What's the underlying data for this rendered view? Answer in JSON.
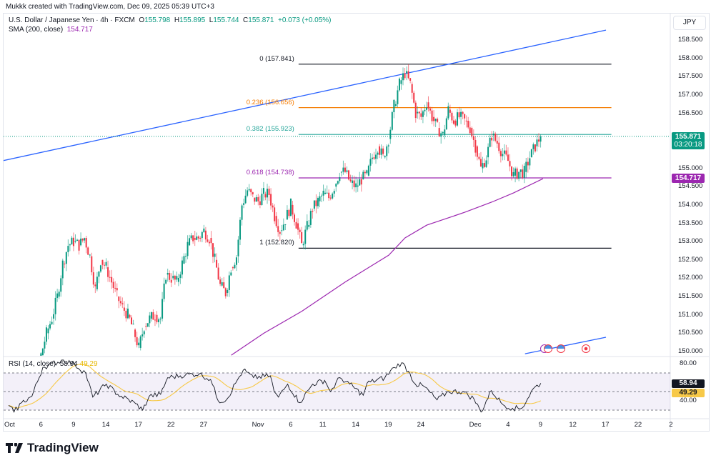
{
  "header": {
    "credit": "Mukkk created with TradingView.com, Dec 09, 2025 05:39 UTC+3"
  },
  "legend": {
    "symbol": "U.S. Dollar / Japanese Yen · 4h · FXCM",
    "o_label": "O",
    "o": "155.798",
    "h_label": "H",
    "h": "155.895",
    "l_label": "L",
    "l": "155.744",
    "c_label": "C",
    "c": "155.871",
    "change": "+0.073 (+0.05%)",
    "sma_label": "SMA (200, close)",
    "sma_value": "154.717"
  },
  "rsi_legend": {
    "label": "RSI (14, close)",
    "value": "58.94",
    "ma_value": "49.29"
  },
  "currency": "JPY",
  "price_tags": {
    "last": "155.871",
    "countdown": "03:20:18",
    "sma": "154.717",
    "rsi": "58.94",
    "rsi_ma": "49.29"
  },
  "colors": {
    "up": "#089981",
    "down": "#f23645",
    "sma": "#9c27b0",
    "trend": "#2962ff",
    "rsi": "#131722",
    "rsi_ma": "#f7c948"
  },
  "logo": "TradingView",
  "chart_data": {
    "type": "candlestick",
    "title": "U.S. Dollar / Japanese Yen · 4h · FXCM",
    "bar_unit": "12h steps of trading time from Oct 1",
    "closes": [
      147.3,
      147.6,
      147.5,
      147.8,
      147.9,
      148.3,
      149.9,
      150.5,
      150.9,
      151.5,
      152.4,
      152.9,
      153.0,
      152.9,
      153.1,
      152.6,
      151.7,
      152.5,
      152.3,
      151.9,
      151.5,
      151.2,
      151.0,
      150.6,
      150.1,
      150.7,
      150.9,
      151.0,
      150.9,
      152.1,
      152.0,
      151.9,
      152.4,
      152.9,
      153.1,
      153.1,
      153.3,
      153.1,
      152.5,
      151.8,
      151.6,
      152.3,
      152.6,
      154.0,
      154.4,
      154.2,
      154.1,
      154.3,
      154.3,
      153.7,
      153.3,
      153.6,
      154.0,
      153.5,
      152.9,
      153.4,
      153.9,
      154.1,
      154.3,
      154.2,
      154.5,
      154.9,
      154.9,
      154.6,
      154.5,
      154.7,
      154.8,
      155.3,
      155.6,
      155.3,
      155.8,
      156.7,
      157.3,
      157.6,
      157.3,
      156.5,
      156.4,
      156.8,
      156.4,
      156.1,
      155.9,
      156.6,
      156.3,
      156.4,
      156.3,
      156.1,
      155.6,
      155.0,
      155.3,
      155.9,
      155.7,
      155.4,
      155.2,
      154.8,
      154.9,
      154.9,
      155.3,
      155.6,
      155.871
    ],
    "sma200": [
      [
        41,
        149.9
      ],
      [
        47,
        150.5
      ],
      [
        54,
        151.1
      ],
      [
        62,
        151.9
      ],
      [
        70,
        152.63
      ],
      [
        73,
        153.1
      ],
      [
        77,
        153.45
      ],
      [
        84,
        153.8
      ],
      [
        89,
        154.08
      ],
      [
        93,
        154.33
      ],
      [
        98.4,
        154.717
      ]
    ],
    "y_range": [
      149.8,
      159.0
    ],
    "y_ticks": [
      "158.500",
      "158.000",
      "157.500",
      "157.000",
      "156.500",
      "156.000",
      "155.500",
      "155.000",
      "154.500",
      "154.000",
      "153.500",
      "153.000",
      "152.500",
      "152.000",
      "151.500",
      "151.000",
      "150.500",
      "150.000"
    ],
    "x_ticks": [
      {
        "label": "Oct",
        "i": 0
      },
      {
        "label": "6",
        "i": 6
      },
      {
        "label": "9",
        "i": 12
      },
      {
        "label": "14",
        "i": 18
      },
      {
        "label": "17",
        "i": 24
      },
      {
        "label": "22",
        "i": 30
      },
      {
        "label": "27",
        "i": 36
      },
      {
        "label": "Nov",
        "i": 46
      },
      {
        "label": "6",
        "i": 52
      },
      {
        "label": "11",
        "i": 58
      },
      {
        "label": "14",
        "i": 64
      },
      {
        "label": "19",
        "i": 70
      },
      {
        "label": "24",
        "i": 76
      },
      {
        "label": "Dec",
        "i": 86
      },
      {
        "label": "4",
        "i": 92
      },
      {
        "label": "9",
        "i": 98
      },
      {
        "label": "12",
        "i": 104
      },
      {
        "label": "17",
        "i": 110
      },
      {
        "label": "22",
        "i": 116
      },
      {
        "label": "2",
        "i": 122
      }
    ],
    "fib": {
      "start_i": 53.4,
      "end_i": 111,
      "levels": [
        {
          "label": "0 (157.841)",
          "price": 157.841,
          "color": "#131722"
        },
        {
          "label": "0.236 (156.656)",
          "price": 156.656,
          "color": "#f57c00"
        },
        {
          "label": "0.382 (155.923)",
          "price": 155.923,
          "color": "#26a69a"
        },
        {
          "label": "0.618 (154.738)",
          "price": 154.738,
          "color": "#9c27b0"
        },
        {
          "label": "1 (152.820)",
          "price": 152.82,
          "color": "#131722"
        }
      ]
    },
    "trendlines": [
      {
        "from": [
          -1.6,
          155.19
        ],
        "to": [
          110,
          158.77
        ]
      },
      {
        "from": [
          95.1,
          149.94
        ],
        "to": [
          110,
          150.39
        ]
      }
    ],
    "rsi": {
      "levels": [
        70,
        50,
        30
      ],
      "y_ticks": [
        "80.00",
        "40.00"
      ],
      "points": [
        [
          0,
          35
        ],
        [
          1,
          28
        ],
        [
          2.4,
          38
        ],
        [
          4.3,
          45
        ],
        [
          6.3,
          76
        ],
        [
          10.1,
          84
        ],
        [
          12.2,
          79
        ],
        [
          14.2,
          70
        ],
        [
          15.5,
          44
        ],
        [
          18,
          58
        ],
        [
          20.1,
          47
        ],
        [
          23.4,
          37
        ],
        [
          24.7,
          30
        ],
        [
          25.9,
          45
        ],
        [
          28,
          47
        ],
        [
          29.3,
          65
        ],
        [
          32.6,
          68
        ],
        [
          35.1,
          69
        ],
        [
          37.2,
          63
        ],
        [
          38.6,
          40
        ],
        [
          40.1,
          41
        ],
        [
          41.8,
          59
        ],
        [
          43.2,
          73
        ],
        [
          45.1,
          65
        ],
        [
          48.2,
          67
        ],
        [
          48.9,
          50
        ],
        [
          49.7,
          44
        ],
        [
          51.4,
          58
        ],
        [
          53.6,
          38
        ],
        [
          56,
          58
        ],
        [
          58.2,
          62
        ],
        [
          59.3,
          50
        ],
        [
          61,
          65
        ],
        [
          62.8,
          58
        ],
        [
          65.3,
          46
        ],
        [
          66,
          59
        ],
        [
          69.3,
          65
        ],
        [
          71,
          76
        ],
        [
          72.4,
          81
        ],
        [
          73.6,
          72
        ],
        [
          74.9,
          58
        ],
        [
          76.4,
          56
        ],
        [
          78.9,
          41
        ],
        [
          81,
          50
        ],
        [
          83.6,
          50
        ],
        [
          85.7,
          42
        ],
        [
          87,
          28
        ],
        [
          88.9,
          51
        ],
        [
          91,
          36
        ],
        [
          92.8,
          32
        ],
        [
          94.5,
          32
        ],
        [
          96.6,
          53
        ],
        [
          98,
          58.94
        ]
      ]
    }
  }
}
